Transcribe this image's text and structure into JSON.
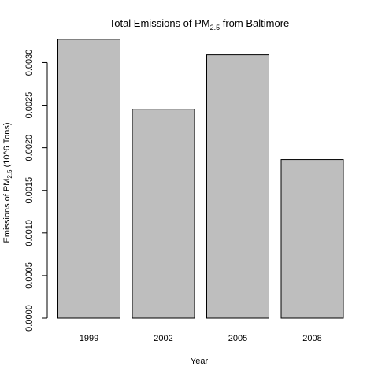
{
  "chart_data": {
    "type": "bar",
    "title": {
      "prefix": "Total Emissions of PM",
      "subscript": "2.5",
      "suffix": " from Baltimore"
    },
    "xlabel": "Year",
    "ylabel": {
      "prefix": "Emissions of PM",
      "subscript": "2.5",
      "suffix": " (10^6 Tons)"
    },
    "categories": [
      "1999",
      "2002",
      "2005",
      "2008"
    ],
    "values": [
      0.003274,
      0.002453,
      0.003091,
      0.001862
    ],
    "ylim": [
      0,
      0.0033
    ],
    "yticks": [
      "0.0000",
      "0.0005",
      "0.0010",
      "0.0015",
      "0.0020",
      "0.0025",
      "0.0030"
    ],
    "bar_fill": "#bebebe",
    "bar_stroke": "#000000",
    "grid": false
  }
}
